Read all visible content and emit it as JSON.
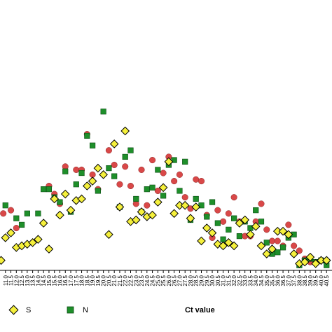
{
  "chart_data": {
    "type": "scatter",
    "title": "",
    "xlabel": "Ct value",
    "ylabel": "",
    "xlim": [
      10.5,
      41.0
    ],
    "ylim": [
      0,
      100
    ],
    "grid": false,
    "legend_position": "bottom-left",
    "x_ticks": [
      "11.0",
      "11.5",
      "12.0",
      "12.5",
      "13.0",
      "13.5",
      "14.0",
      "14.5",
      "15.0",
      "15.5",
      "16.0",
      "16.5",
      "17.0",
      "17.5",
      "18.0",
      "18.5",
      "19.0",
      "19.5",
      "20.0",
      "20.5",
      "21.0",
      "21.5",
      "22.0",
      "22.5",
      "23.0",
      "23.5",
      "24.0",
      "24.5",
      "25.0",
      "25.5",
      "26.0",
      "26.5",
      "27.0",
      "27.5",
      "28.0",
      "28.5",
      "29.0",
      "29.5",
      "30.0",
      "30.5",
      "31.0",
      "31.5",
      "32.0",
      "32.5",
      "33.0",
      "33.5",
      "34.0",
      "34.5",
      "35.0",
      "35.5",
      "36.0",
      "36.5",
      "37.0",
      "37.5",
      "38.0",
      "38.5",
      "39.0",
      "39.5",
      "40.0",
      "40.5"
    ],
    "series": [
      {
        "name": "S",
        "marker": "diamond",
        "color": "#f5f03c",
        "points": [
          [
            10.6,
            4
          ],
          [
            11.0,
            18
          ],
          [
            11.5,
            21
          ],
          [
            12.0,
            12
          ],
          [
            12.5,
            13
          ],
          [
            13.0,
            14
          ],
          [
            13.5,
            15
          ],
          [
            14.0,
            17
          ],
          [
            14.5,
            27
          ],
          [
            15.0,
            11
          ],
          [
            15.5,
            42
          ],
          [
            16.0,
            32
          ],
          [
            16.5,
            45
          ],
          [
            17.0,
            35
          ],
          [
            17.5,
            41
          ],
          [
            18.0,
            42
          ],
          [
            18.5,
            50
          ],
          [
            19.0,
            53
          ],
          [
            19.5,
            61
          ],
          [
            20.0,
            57
          ],
          [
            20.5,
            20
          ],
          [
            21.0,
            76
          ],
          [
            21.5,
            37
          ],
          [
            22.0,
            84
          ],
          [
            22.5,
            28
          ],
          [
            23.0,
            29
          ],
          [
            23.5,
            34
          ],
          [
            24.0,
            31
          ],
          [
            24.5,
            32
          ],
          [
            25.0,
            40
          ],
          [
            25.5,
            49
          ],
          [
            26.0,
            65
          ],
          [
            26.5,
            33
          ],
          [
            27.0,
            38
          ],
          [
            27.5,
            38
          ],
          [
            28.0,
            30
          ],
          [
            28.5,
            37
          ],
          [
            29.0,
            16
          ],
          [
            29.5,
            24
          ],
          [
            30.0,
            21
          ],
          [
            30.5,
            14
          ],
          [
            31.0,
            13
          ],
          [
            31.5,
            15
          ],
          [
            32.0,
            13
          ],
          [
            32.5,
            27
          ],
          [
            33.0,
            29
          ],
          [
            33.5,
            20
          ],
          [
            34.0,
            25
          ],
          [
            34.5,
            13
          ],
          [
            35.0,
            8
          ],
          [
            35.5,
            11
          ],
          [
            36.0,
            22
          ],
          [
            36.5,
            22
          ],
          [
            37.0,
            20
          ],
          [
            37.5,
            8
          ],
          [
            38.0,
            2
          ],
          [
            38.5,
            3
          ],
          [
            39.0,
            6
          ],
          [
            39.5,
            2
          ],
          [
            40.0,
            4
          ],
          [
            40.5,
            4
          ]
        ]
      },
      {
        "name": "N",
        "marker": "square",
        "color": "#1e8f2a",
        "points": [
          [
            11.0,
            38
          ],
          [
            12.0,
            30
          ],
          [
            12.5,
            26
          ],
          [
            13.0,
            33
          ],
          [
            14.0,
            33
          ],
          [
            14.5,
            48
          ],
          [
            15.0,
            48
          ],
          [
            15.5,
            43
          ],
          [
            16.0,
            40
          ],
          [
            16.5,
            59
          ],
          [
            17.0,
            34
          ],
          [
            17.5,
            51
          ],
          [
            18.0,
            58
          ],
          [
            18.5,
            81
          ],
          [
            19.0,
            75
          ],
          [
            19.5,
            47
          ],
          [
            20.0,
            96
          ],
          [
            20.5,
            61
          ],
          [
            21.0,
            56
          ],
          [
            21.5,
            37
          ],
          [
            22.0,
            68
          ],
          [
            22.5,
            72
          ],
          [
            23.0,
            42
          ],
          [
            23.5,
            34
          ],
          [
            24.0,
            48
          ],
          [
            24.5,
            49
          ],
          [
            25.0,
            60
          ],
          [
            25.5,
            44
          ],
          [
            26.0,
            63
          ],
          [
            26.5,
            66
          ],
          [
            27.0,
            47
          ],
          [
            27.5,
            65
          ],
          [
            28.0,
            29
          ],
          [
            28.5,
            42
          ],
          [
            29.0,
            38
          ],
          [
            29.5,
            31
          ],
          [
            30.0,
            40
          ],
          [
            30.5,
            27
          ],
          [
            31.0,
            17
          ],
          [
            31.5,
            23
          ],
          [
            32.0,
            30
          ],
          [
            32.5,
            19
          ],
          [
            33.0,
            28
          ],
          [
            33.5,
            24
          ],
          [
            34.0,
            35
          ],
          [
            34.5,
            28
          ],
          [
            35.0,
            15
          ],
          [
            35.5,
            8
          ],
          [
            36.0,
            9
          ],
          [
            36.5,
            12
          ],
          [
            37.0,
            18
          ],
          [
            37.5,
            20
          ],
          [
            38.0,
            1
          ],
          [
            38.5,
            4
          ],
          [
            39.0,
            5
          ],
          [
            39.5,
            3
          ],
          [
            40.0,
            4
          ],
          [
            40.5,
            1
          ]
        ]
      },
      {
        "name": "",
        "marker": "circle",
        "color": "#d94848",
        "points": [
          [
            10.8,
            33
          ],
          [
            11.5,
            35
          ],
          [
            12.0,
            24
          ],
          [
            15.0,
            50
          ],
          [
            15.5,
            45
          ],
          [
            16.0,
            39
          ],
          [
            16.5,
            62
          ],
          [
            17.5,
            60
          ],
          [
            18.0,
            60
          ],
          [
            18.5,
            82
          ],
          [
            19.0,
            57
          ],
          [
            19.5,
            48
          ],
          [
            20.5,
            72
          ],
          [
            21.0,
            63
          ],
          [
            21.5,
            51
          ],
          [
            22.0,
            62
          ],
          [
            22.5,
            50
          ],
          [
            23.0,
            39
          ],
          [
            23.5,
            60
          ],
          [
            24.0,
            38
          ],
          [
            24.5,
            66
          ],
          [
            25.0,
            47
          ],
          [
            25.5,
            58
          ],
          [
            26.0,
            68
          ],
          [
            26.5,
            53
          ],
          [
            27.0,
            57
          ],
          [
            27.5,
            43
          ],
          [
            28.0,
            36
          ],
          [
            28.5,
            54
          ],
          [
            29.0,
            53
          ],
          [
            29.5,
            32
          ],
          [
            30.0,
            18
          ],
          [
            30.5,
            35
          ],
          [
            31.0,
            28
          ],
          [
            31.5,
            33
          ],
          [
            32.0,
            43
          ],
          [
            32.5,
            28
          ],
          [
            33.0,
            19
          ],
          [
            33.5,
            19
          ],
          [
            34.0,
            28
          ],
          [
            34.5,
            39
          ],
          [
            35.0,
            23
          ],
          [
            35.5,
            16
          ],
          [
            36.0,
            16
          ],
          [
            36.5,
            13
          ],
          [
            37.0,
            26
          ],
          [
            37.5,
            13
          ],
          [
            38.0,
            10
          ],
          [
            38.5,
            5
          ],
          [
            39.0,
            3
          ]
        ]
      }
    ]
  },
  "legend": {
    "items": [
      {
        "label": "S"
      },
      {
        "label": "N"
      }
    ]
  }
}
